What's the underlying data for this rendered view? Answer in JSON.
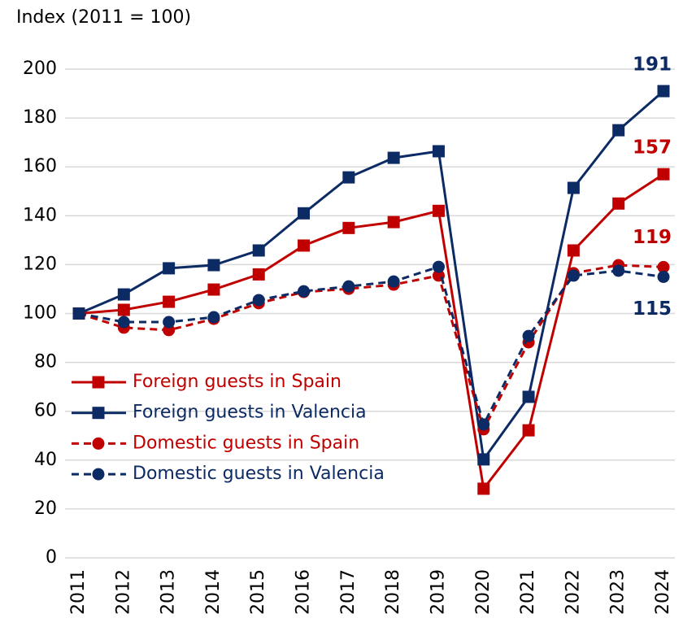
{
  "chart_data": {
    "type": "line",
    "y_axis_label": "Index (2011 = 100)",
    "categories": [
      "2011",
      "2012",
      "2013",
      "2014",
      "2015",
      "2016",
      "2017",
      "2018",
      "2019",
      "2020",
      "2021",
      "2022",
      "2023",
      "2024"
    ],
    "series": [
      {
        "name": "Foreign guests in Spain",
        "color": "#c00000",
        "line_style": "solid",
        "marker": "square",
        "values": [
          100,
          101.5,
          104.8,
          109.8,
          116,
          127.8,
          135,
          137.4,
          142,
          28.3,
          52.2,
          125.8,
          145,
          157
        ]
      },
      {
        "name": "Foreign guests in Valencia",
        "color": "#0c2a64",
        "line_style": "solid",
        "marker": "square",
        "values": [
          100,
          107.8,
          118.5,
          119.8,
          125.8,
          141,
          155.7,
          163.7,
          166.4,
          40.3,
          65.9,
          151.4,
          175,
          191
        ]
      },
      {
        "name": "Domestic guests in Spain",
        "color": "#c00000",
        "line_style": "dashed",
        "marker": "circle",
        "values": [
          100,
          94.2,
          93.2,
          97.8,
          104.2,
          108.8,
          110.1,
          111.8,
          115.5,
          52.6,
          88.2,
          116.5,
          119.8,
          119
        ]
      },
      {
        "name": "Domestic guests in Valencia",
        "color": "#0c2a64",
        "line_style": "dashed",
        "marker": "circle",
        "values": [
          100,
          96.5,
          96.5,
          98.5,
          105.5,
          109.1,
          111.1,
          113.1,
          119.1,
          54.6,
          90.8,
          115.5,
          117.5,
          115
        ]
      }
    ],
    "ylim": [
      0,
      200
    ],
    "yticks": [
      0,
      20,
      40,
      60,
      80,
      100,
      120,
      140,
      160,
      180,
      200
    ],
    "grid": true,
    "legend": "lower-left"
  }
}
